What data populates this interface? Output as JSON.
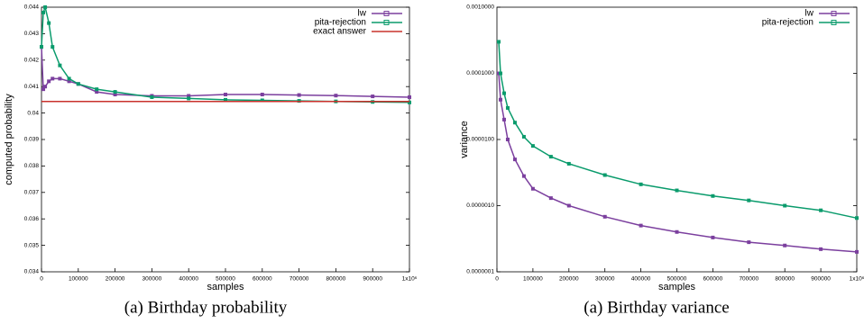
{
  "chart_data": [
    {
      "type": "line",
      "caption": "(a) Birthday probability",
      "xlabel": "samples",
      "ylabel": "computed probability",
      "x": [
        0,
        5000,
        10000,
        20000,
        30000,
        50000,
        75000,
        100000,
        150000,
        200000,
        300000,
        400000,
        500000,
        600000,
        700000,
        800000,
        900000,
        1000000
      ],
      "series": [
        {
          "name": "lw",
          "color": "#7b3f9e",
          "marker": "square",
          "values": [
            0.0425,
            0.0409,
            0.041,
            0.0412,
            0.0413,
            0.0413,
            0.0412,
            0.0411,
            0.0408,
            0.0407,
            0.04065,
            0.04065,
            0.0407,
            0.0407,
            0.04068,
            0.04066,
            0.04063,
            0.0406
          ]
        },
        {
          "name": "pita-rejection",
          "color": "#0a9b6c",
          "marker": "square",
          "values": [
            0.0425,
            0.0438,
            0.044,
            0.0434,
            0.0425,
            0.0418,
            0.0413,
            0.0411,
            0.0409,
            0.0408,
            0.0406,
            0.04055,
            0.0405,
            0.04048,
            0.04046,
            0.04044,
            0.04042,
            0.0404
          ]
        },
        {
          "name": "exact answer",
          "color": "#c8322c",
          "marker": "none",
          "values": [
            0.04044,
            0.04044,
            0.04044,
            0.04044,
            0.04044,
            0.04044,
            0.04044,
            0.04044,
            0.04044,
            0.04044,
            0.04044,
            0.04044,
            0.04044,
            0.04044,
            0.04044,
            0.04044,
            0.04044,
            0.04044
          ]
        }
      ],
      "xlim": [
        0,
        1000000
      ],
      "xticks": [
        0,
        100000,
        200000,
        300000,
        400000,
        500000,
        600000,
        700000,
        800000,
        900000,
        {
          "value": 1000000,
          "label": "1x10⁶"
        }
      ],
      "ylim": [
        0.034,
        0.044
      ],
      "yticks": [
        0.034,
        0.035,
        0.036,
        0.037,
        0.038,
        0.039,
        0.04,
        0.041,
        0.042,
        0.043,
        0.044
      ],
      "log_y": false,
      "legend": "top-right"
    },
    {
      "type": "line",
      "caption": "(a) Birthday variance",
      "xlabel": "samples",
      "ylabel": "variance",
      "x": [
        0,
        5000,
        10000,
        20000,
        30000,
        50000,
        75000,
        100000,
        150000,
        200000,
        300000,
        400000,
        500000,
        600000,
        700000,
        800000,
        900000,
        1000000
      ],
      "series": [
        {
          "name": "lw",
          "color": "#7b3f9e",
          "marker": "square",
          "values": [
            null,
            0.0001,
            4e-05,
            2e-05,
            1e-05,
            5e-06,
            2.8e-06,
            1.8e-06,
            1.3e-06,
            1e-06,
            6.8e-07,
            5e-07,
            4e-07,
            3.3e-07,
            2.8e-07,
            2.5e-07,
            2.2e-07,
            2e-07
          ]
        },
        {
          "name": "pita-rejection",
          "color": "#0a9b6c",
          "marker": "square",
          "values": [
            null,
            0.0003,
            0.0001,
            5e-05,
            3e-05,
            1.8e-05,
            1.1e-05,
            8e-06,
            5.5e-06,
            4.3e-06,
            2.9e-06,
            2.1e-06,
            1.7e-06,
            1.4e-06,
            1.2e-06,
            1e-06,
            8.5e-07,
            6.5e-07
          ]
        }
      ],
      "xlim": [
        0,
        1000000
      ],
      "xticks": [
        0,
        100000,
        200000,
        300000,
        400000,
        500000,
        600000,
        700000,
        800000,
        900000,
        {
          "value": 1000000,
          "label": "1x10⁶"
        }
      ],
      "ylim": [
        1e-07,
        0.001
      ],
      "yticks": [
        {
          "value": 1e-07,
          "label": "0.0000001"
        },
        {
          "value": 1e-06,
          "label": "0.0000010"
        },
        {
          "value": 1e-05,
          "label": "0.0000100"
        },
        {
          "value": 0.0001,
          "label": "0.0001000"
        },
        {
          "value": 0.001,
          "label": "0.0010000"
        }
      ],
      "log_y": true,
      "legend": "top-right"
    }
  ]
}
